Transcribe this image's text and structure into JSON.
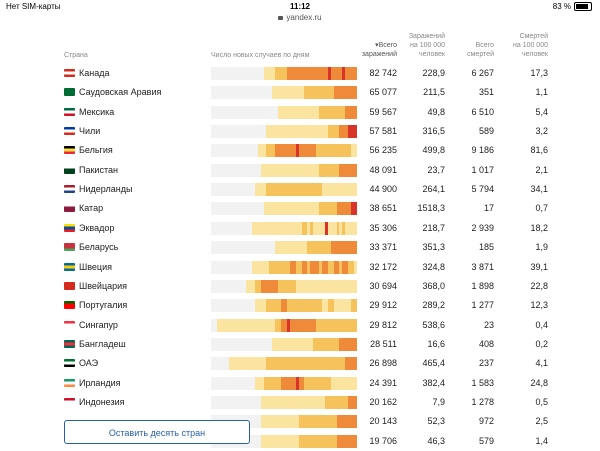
{
  "status": {
    "carrier": "Нет SIM-карты",
    "time": "11:12",
    "battery": "83 %"
  },
  "url": "yandex.ru",
  "header": {
    "country": "Страна",
    "daily": "Число новых случаев по дням",
    "total_cases": [
      "▾Всего",
      "заражений"
    ],
    "cases_per_100k": [
      "Заражений",
      "на 100 000",
      "человек"
    ],
    "total_deaths": [
      "Всего",
      "смертей"
    ],
    "deaths_per_100k": [
      "Смертей",
      "на 100 000",
      "человек"
    ]
  },
  "rows": [
    {
      "country": "Канада",
      "cases": "82 742",
      "per100k": "228,9",
      "deaths": "6 267",
      "deaths100k": "17,3",
      "flag": [
        "#d52b1e",
        "#fff",
        "#d52b1e"
      ],
      "heat": [
        0,
        0,
        0,
        0,
        0,
        0,
        0,
        0,
        0,
        0,
        0,
        0,
        0,
        0,
        0,
        0,
        0,
        0,
        1,
        1,
        1,
        1,
        2,
        2,
        2,
        2,
        3,
        3,
        3,
        3,
        3,
        3,
        3,
        3,
        3,
        3,
        3,
        3,
        3,
        3,
        4,
        3,
        3,
        3,
        3,
        4,
        3,
        3,
        3,
        3
      ]
    },
    {
      "country": "Саудовская Аравия",
      "cases": "65 077",
      "per100k": "211,5",
      "deaths": "351",
      "deaths100k": "1,1",
      "flag": [
        "#006c35",
        "#006c35",
        "#006c35"
      ],
      "heat": [
        0,
        0,
        0,
        0,
        0,
        0,
        0,
        0,
        0,
        0,
        0,
        0,
        0,
        0,
        0,
        0,
        0,
        0,
        0,
        0,
        0,
        1,
        1,
        1,
        1,
        1,
        1,
        1,
        1,
        1,
        1,
        1,
        2,
        2,
        2,
        2,
        2,
        2,
        2,
        2,
        2,
        2,
        3,
        3,
        3,
        3,
        3,
        3,
        3,
        3
      ]
    },
    {
      "country": "Мексика",
      "cases": "59 567",
      "per100k": "49,8",
      "deaths": "6 510",
      "deaths100k": "5,4",
      "flag": [
        "#006847",
        "#fff",
        "#ce1126"
      ],
      "heat": [
        0,
        0,
        0,
        0,
        0,
        0,
        0,
        0,
        0,
        0,
        0,
        0,
        0,
        0,
        0,
        0,
        0,
        0,
        0,
        0,
        0,
        0,
        0,
        1,
        1,
        1,
        1,
        1,
        1,
        1,
        1,
        1,
        1,
        1,
        1,
        1,
        1,
        2,
        2,
        2,
        2,
        2,
        2,
        2,
        2,
        2,
        3,
        3,
        3,
        3
      ]
    },
    {
      "country": "Чили",
      "cases": "57 581",
      "per100k": "316,5",
      "deaths": "589",
      "deaths100k": "3,2",
      "flag": [
        "#0039a6",
        "#fff",
        "#d52b1e"
      ],
      "heat": [
        0,
        0,
        0,
        0,
        0,
        0,
        0,
        0,
        0,
        0,
        0,
        0,
        0,
        0,
        0,
        0,
        0,
        0,
        0,
        1,
        1,
        1,
        1,
        1,
        1,
        1,
        1,
        1,
        1,
        1,
        1,
        1,
        1,
        1,
        1,
        1,
        1,
        1,
        1,
        1,
        2,
        2,
        2,
        2,
        3,
        3,
        3,
        4,
        4,
        4
      ]
    },
    {
      "country": "Бельгия",
      "cases": "56 235",
      "per100k": "499,8",
      "deaths": "9 186",
      "deaths100k": "81,6",
      "flag": [
        "#000",
        "#fae042",
        "#ed2939"
      ],
      "heat": [
        0,
        0,
        0,
        0,
        0,
        0,
        0,
        0,
        0,
        0,
        0,
        0,
        0,
        0,
        0,
        0,
        1,
        1,
        1,
        2,
        2,
        2,
        3,
        3,
        3,
        3,
        3,
        3,
        3,
        4,
        3,
        3,
        3,
        3,
        3,
        3,
        2,
        2,
        2,
        2,
        2,
        2,
        2,
        2,
        2,
        2,
        2,
        2,
        1,
        1
      ]
    },
    {
      "country": "Пакистан",
      "cases": "48 091",
      "per100k": "23,7",
      "deaths": "1 017",
      "deaths100k": "2,1",
      "flag": [
        "#fff",
        "#01411c",
        "#01411c"
      ],
      "heat": [
        0,
        0,
        0,
        0,
        0,
        0,
        0,
        0,
        0,
        0,
        0,
        0,
        0,
        0,
        0,
        0,
        0,
        1,
        1,
        1,
        1,
        1,
        1,
        1,
        1,
        1,
        1,
        1,
        1,
        1,
        1,
        1,
        1,
        1,
        1,
        1,
        1,
        2,
        2,
        2,
        2,
        2,
        2,
        2,
        3,
        3,
        3,
        3,
        3,
        3
      ]
    },
    {
      "country": "Нидерланды",
      "cases": "44 900",
      "per100k": "264,1",
      "deaths": "5 794",
      "deaths100k": "34,1",
      "flag": [
        "#ae1c28",
        "#fff",
        "#21468b"
      ],
      "heat": [
        0,
        0,
        0,
        0,
        0,
        0,
        0,
        0,
        0,
        0,
        0,
        0,
        0,
        0,
        0,
        1,
        1,
        1,
        1,
        2,
        2,
        2,
        2,
        2,
        2,
        2,
        2,
        2,
        2,
        2,
        2,
        2,
        2,
        2,
        2,
        2,
        2,
        2,
        1,
        1,
        1,
        1,
        1,
        1,
        1,
        1,
        1,
        1,
        1,
        1
      ]
    },
    {
      "country": "Катар",
      "cases": "38 651",
      "per100k": "1518,3",
      "deaths": "17",
      "deaths100k": "0,7",
      "flag": [
        "#fff",
        "#8d1b3d",
        "#8d1b3d"
      ],
      "heat": [
        0,
        0,
        0,
        0,
        0,
        0,
        0,
        0,
        0,
        0,
        0,
        0,
        0,
        0,
        0,
        0,
        0,
        0,
        1,
        1,
        1,
        1,
        1,
        1,
        1,
        1,
        1,
        1,
        1,
        1,
        1,
        1,
        1,
        1,
        1,
        1,
        1,
        2,
        2,
        2,
        2,
        2,
        2,
        3,
        3,
        3,
        3,
        3,
        4,
        4
      ]
    },
    {
      "country": "Эквадор",
      "cases": "35 306",
      "per100k": "218,7",
      "deaths": "2 939",
      "deaths100k": "18,2",
      "flag": [
        "#ffdd00",
        "#034ea2",
        "#ed1c24"
      ],
      "heat": [
        0,
        0,
        0,
        0,
        0,
        0,
        0,
        0,
        0,
        0,
        0,
        0,
        0,
        0,
        1,
        1,
        1,
        1,
        1,
        1,
        1,
        1,
        1,
        1,
        1,
        1,
        1,
        1,
        1,
        1,
        1,
        2,
        2,
        1,
        2,
        1,
        1,
        1,
        1,
        4,
        1,
        1,
        1,
        2,
        1,
        2,
        1,
        1,
        1,
        1
      ]
    },
    {
      "country": "Беларусь",
      "cases": "33 371",
      "per100k": "351,3",
      "deaths": "185",
      "deaths100k": "1,9",
      "flag": [
        "#c8313e",
        "#c8313e",
        "#4aa657"
      ],
      "heat": [
        0,
        0,
        0,
        0,
        0,
        0,
        0,
        0,
        0,
        0,
        0,
        0,
        0,
        0,
        0,
        0,
        0,
        0,
        0,
        0,
        0,
        0,
        1,
        1,
        1,
        1,
        1,
        1,
        1,
        1,
        1,
        1,
        1,
        2,
        2,
        2,
        2,
        2,
        2,
        2,
        2,
        3,
        3,
        3,
        3,
        3,
        3,
        3,
        3,
        3
      ]
    },
    {
      "country": "Швеция",
      "cases": "32 172",
      "per100k": "324,8",
      "deaths": "3 871",
      "deaths100k": "39,1",
      "flag": [
        "#006aa7",
        "#fecc00",
        "#006aa7"
      ],
      "heat": [
        0,
        0,
        0,
        0,
        0,
        0,
        0,
        0,
        0,
        0,
        0,
        0,
        0,
        0,
        1,
        1,
        1,
        1,
        1,
        1,
        2,
        2,
        2,
        2,
        2,
        2,
        2,
        3,
        3,
        2,
        2,
        3,
        3,
        2,
        3,
        3,
        3,
        2,
        3,
        3,
        2,
        2,
        3,
        3,
        2,
        3,
        3,
        2,
        2,
        1
      ]
    },
    {
      "country": "Швейцария",
      "cases": "30 694",
      "per100k": "368,0",
      "deaths": "1 898",
      "deaths100k": "22,8",
      "flag": [
        "#d52b1e",
        "#d52b1e",
        "#d52b1e"
      ],
      "heat": [
        0,
        0,
        0,
        0,
        0,
        0,
        0,
        0,
        0,
        0,
        0,
        0,
        1,
        1,
        1,
        2,
        2,
        3,
        3,
        3,
        3,
        3,
        3,
        2,
        2,
        2,
        2,
        2,
        2,
        1,
        1,
        1,
        1,
        1,
        1,
        1,
        1,
        1,
        1,
        1,
        1,
        1,
        1,
        1,
        1,
        1,
        1,
        1,
        1,
        1
      ]
    },
    {
      "country": "Португалия",
      "cases": "29 912",
      "per100k": "289,2",
      "deaths": "1 277",
      "deaths100k": "12,3",
      "flag": [
        "#006600",
        "#ff0000",
        "#ff0000"
      ],
      "heat": [
        0,
        0,
        0,
        0,
        0,
        0,
        0,
        0,
        0,
        0,
        0,
        0,
        0,
        0,
        0,
        1,
        1,
        1,
        1,
        2,
        2,
        2,
        2,
        2,
        3,
        3,
        2,
        2,
        2,
        2,
        2,
        2,
        2,
        2,
        2,
        2,
        2,
        2,
        1,
        1,
        2,
        2,
        1,
        1,
        1,
        1,
        1,
        1,
        2,
        2
      ]
    },
    {
      "country": "Сингапур",
      "cases": "29 812",
      "per100k": "538,6",
      "deaths": "23",
      "deaths100k": "0,4",
      "flag": [
        "#ef3340",
        "#fff",
        "#fff"
      ],
      "heat": [
        0,
        0,
        1,
        1,
        1,
        1,
        1,
        1,
        1,
        1,
        1,
        1,
        1,
        1,
        1,
        1,
        1,
        1,
        1,
        1,
        1,
        1,
        2,
        2,
        3,
        3,
        4,
        3,
        3,
        3,
        3,
        3,
        3,
        3,
        3,
        3,
        2,
        2,
        2,
        2,
        2,
        2,
        2,
        2,
        2,
        2,
        2,
        2,
        2,
        2
      ]
    },
    {
      "country": "Бангладеш",
      "cases": "28 511",
      "per100k": "16,6",
      "deaths": "408",
      "deaths100k": "0,2",
      "flag": [
        "#006a4e",
        "#f42a41",
        "#006a4e"
      ],
      "heat": [
        0,
        0,
        0,
        0,
        0,
        0,
        0,
        0,
        0,
        0,
        0,
        0,
        0,
        0,
        0,
        0,
        0,
        0,
        0,
        0,
        0,
        1,
        1,
        1,
        1,
        1,
        1,
        1,
        1,
        1,
        1,
        1,
        1,
        1,
        1,
        2,
        2,
        2,
        2,
        2,
        2,
        2,
        2,
        2,
        3,
        3,
        3,
        3,
        3,
        3
      ]
    },
    {
      "country": "ОАЭ",
      "cases": "26 898",
      "per100k": "465,4",
      "deaths": "237",
      "deaths100k": "4,1",
      "flag": [
        "#00732f",
        "#fff",
        "#000"
      ],
      "heat": [
        0,
        0,
        0,
        0,
        0,
        0,
        1,
        1,
        1,
        1,
        1,
        1,
        1,
        1,
        1,
        1,
        1,
        1,
        1,
        2,
        2,
        2,
        2,
        2,
        2,
        2,
        2,
        2,
        2,
        2,
        2,
        2,
        2,
        2,
        2,
        2,
        2,
        2,
        2,
        2,
        2,
        2,
        2,
        2,
        2,
        2,
        3,
        3,
        3,
        3
      ]
    },
    {
      "country": "Ирландия",
      "cases": "24 391",
      "per100k": "382,4",
      "deaths": "1 583",
      "deaths100k": "24,8",
      "flag": [
        "#169b62",
        "#fff",
        "#ff883e"
      ],
      "heat": [
        0,
        0,
        0,
        0,
        0,
        0,
        0,
        0,
        0,
        0,
        0,
        0,
        0,
        0,
        0,
        1,
        1,
        1,
        2,
        2,
        2,
        2,
        2,
        2,
        3,
        3,
        3,
        3,
        3,
        4,
        3,
        3,
        2,
        2,
        2,
        2,
        2,
        2,
        2,
        2,
        2,
        1,
        1,
        1,
        1,
        1,
        1,
        1,
        1,
        1
      ]
    },
    {
      "country": "Индонезия",
      "cases": "20 162",
      "per100k": "7,9",
      "deaths": "1 278",
      "deaths100k": "0,5",
      "flag": [
        "#ce1126",
        "#fff",
        "#fff"
      ],
      "heat": [
        0,
        0,
        0,
        0,
        0,
        0,
        0,
        0,
        0,
        0,
        0,
        0,
        0,
        0,
        0,
        0,
        0,
        1,
        1,
        1,
        1,
        1,
        1,
        1,
        1,
        1,
        1,
        1,
        1,
        1,
        1,
        1,
        1,
        1,
        1,
        1,
        1,
        1,
        1,
        2,
        2,
        2,
        2,
        2,
        2,
        2,
        2,
        3,
        3,
        3
      ]
    },
    {
      "country": "",
      "cases": "20 143",
      "per100k": "52,3",
      "deaths": "972",
      "deaths100k": "2,5",
      "flag": [
        "#fff",
        "#fff",
        "#fff"
      ],
      "heat": [
        0,
        0,
        0,
        0,
        0,
        0,
        0,
        0,
        0,
        0,
        0,
        0,
        0,
        0,
        0,
        0,
        0,
        1,
        1,
        1,
        1,
        1,
        1,
        1,
        1,
        1,
        1,
        1,
        1,
        1,
        2,
        2,
        2,
        2,
        2,
        2,
        2,
        2,
        2,
        2,
        2,
        2,
        2,
        3,
        3,
        3,
        3,
        3,
        3,
        3
      ]
    },
    {
      "country": "",
      "cases": "19 706",
      "per100k": "46,3",
      "deaths": "579",
      "deaths100k": "1,4",
      "flag": [
        "#fff",
        "#fff",
        "#fff"
      ],
      "heat": [
        0,
        0,
        0,
        0,
        0,
        0,
        0,
        0,
        0,
        0,
        0,
        0,
        0,
        0,
        0,
        0,
        0,
        1,
        1,
        1,
        1,
        1,
        1,
        1,
        1,
        1,
        1,
        1,
        1,
        1,
        2,
        2,
        2,
        2,
        2,
        2,
        2,
        2,
        2,
        2,
        2,
        2,
        2,
        3,
        3,
        3,
        3,
        3,
        3,
        3
      ]
    }
  ],
  "colors": {
    "heat": [
      "#f2f2f2",
      "#fbe3a0",
      "#f6c25c",
      "#ee8a3a",
      "#d8342a"
    ]
  },
  "show_more": "Оставить десять стран"
}
